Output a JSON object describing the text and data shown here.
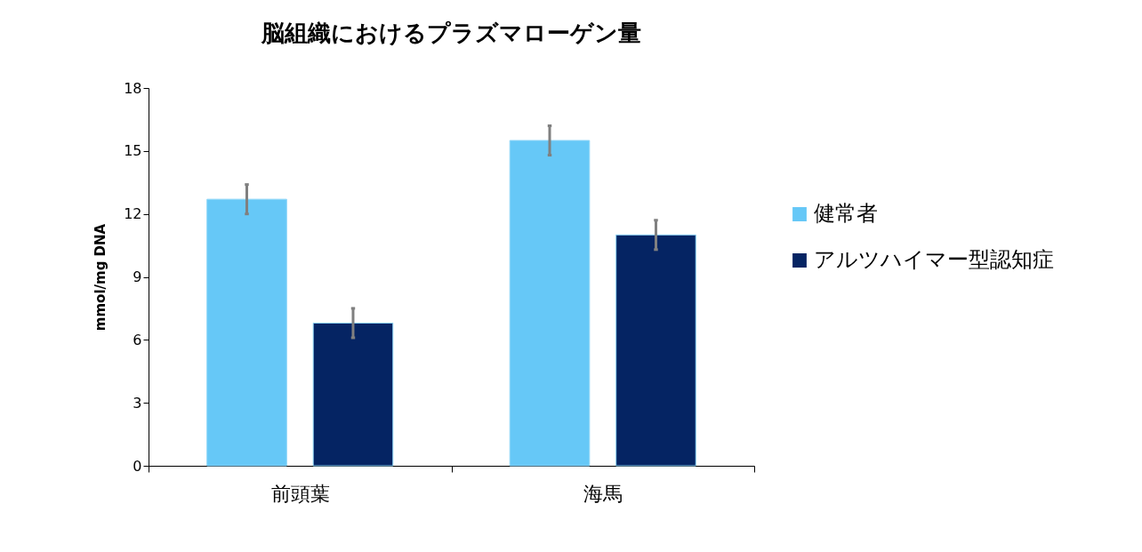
{
  "chart_data": {
    "type": "bar",
    "title": "脳組織におけるプラズマローゲン量",
    "ylabel": "mmol/mg DNA",
    "categories": [
      "前頭葉",
      "海馬"
    ],
    "series": [
      {
        "name": "健常者",
        "color": "#66c8f7",
        "values": [
          12.7,
          15.5
        ],
        "errors": [
          0.7,
          0.7
        ]
      },
      {
        "name": "アルツハイマー型認知症",
        "color": "#052463",
        "values": [
          6.8,
          11.0
        ],
        "errors": [
          0.7,
          0.7
        ]
      }
    ],
    "ylim": [
      0,
      18
    ],
    "yticks": [
      0,
      3,
      6,
      9,
      12,
      15,
      18
    ],
    "grid": false,
    "legend": "right"
  }
}
